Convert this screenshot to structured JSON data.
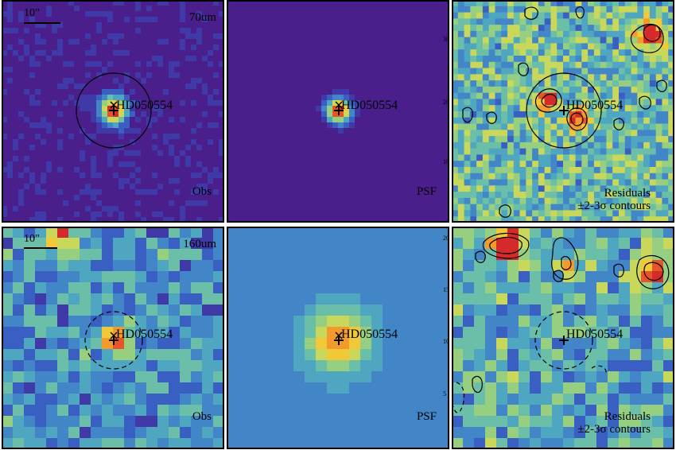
{
  "target_name": "HD050554",
  "scale_bar_label": "10\"",
  "rows": [
    {
      "band": "70um",
      "panels": [
        {
          "kind": "obs",
          "label": "Obs",
          "background": "#5a2f8a",
          "source_peak": "#e8412a"
        },
        {
          "kind": "psf",
          "label": "PSF",
          "background": "#4b2aa0",
          "source_peak": "#e85a20"
        },
        {
          "kind": "residual",
          "label_line1": "Residuals",
          "label_line2": "±2-3σ contours",
          "background": "#6ab0c8"
        }
      ],
      "aperture_style": "solid"
    },
    {
      "band": "160um",
      "panels": [
        {
          "kind": "obs",
          "label": "Obs",
          "background": "#4c9ac6",
          "source_peak": "#e8a020"
        },
        {
          "kind": "psf",
          "label": "PSF",
          "background": "#4c98cc",
          "source_peak": "#f2d040"
        },
        {
          "kind": "residual",
          "label_line1": "Residuals",
          "label_line2": "±2-3σ contours",
          "background": "#6ab0c8"
        }
      ],
      "aperture_style": "dashed"
    }
  ],
  "axis_ticks_top_row": [
    "30",
    "20",
    "10"
  ],
  "axis_ticks_bottom_row": [
    "20",
    "15",
    "10",
    "5"
  ]
}
